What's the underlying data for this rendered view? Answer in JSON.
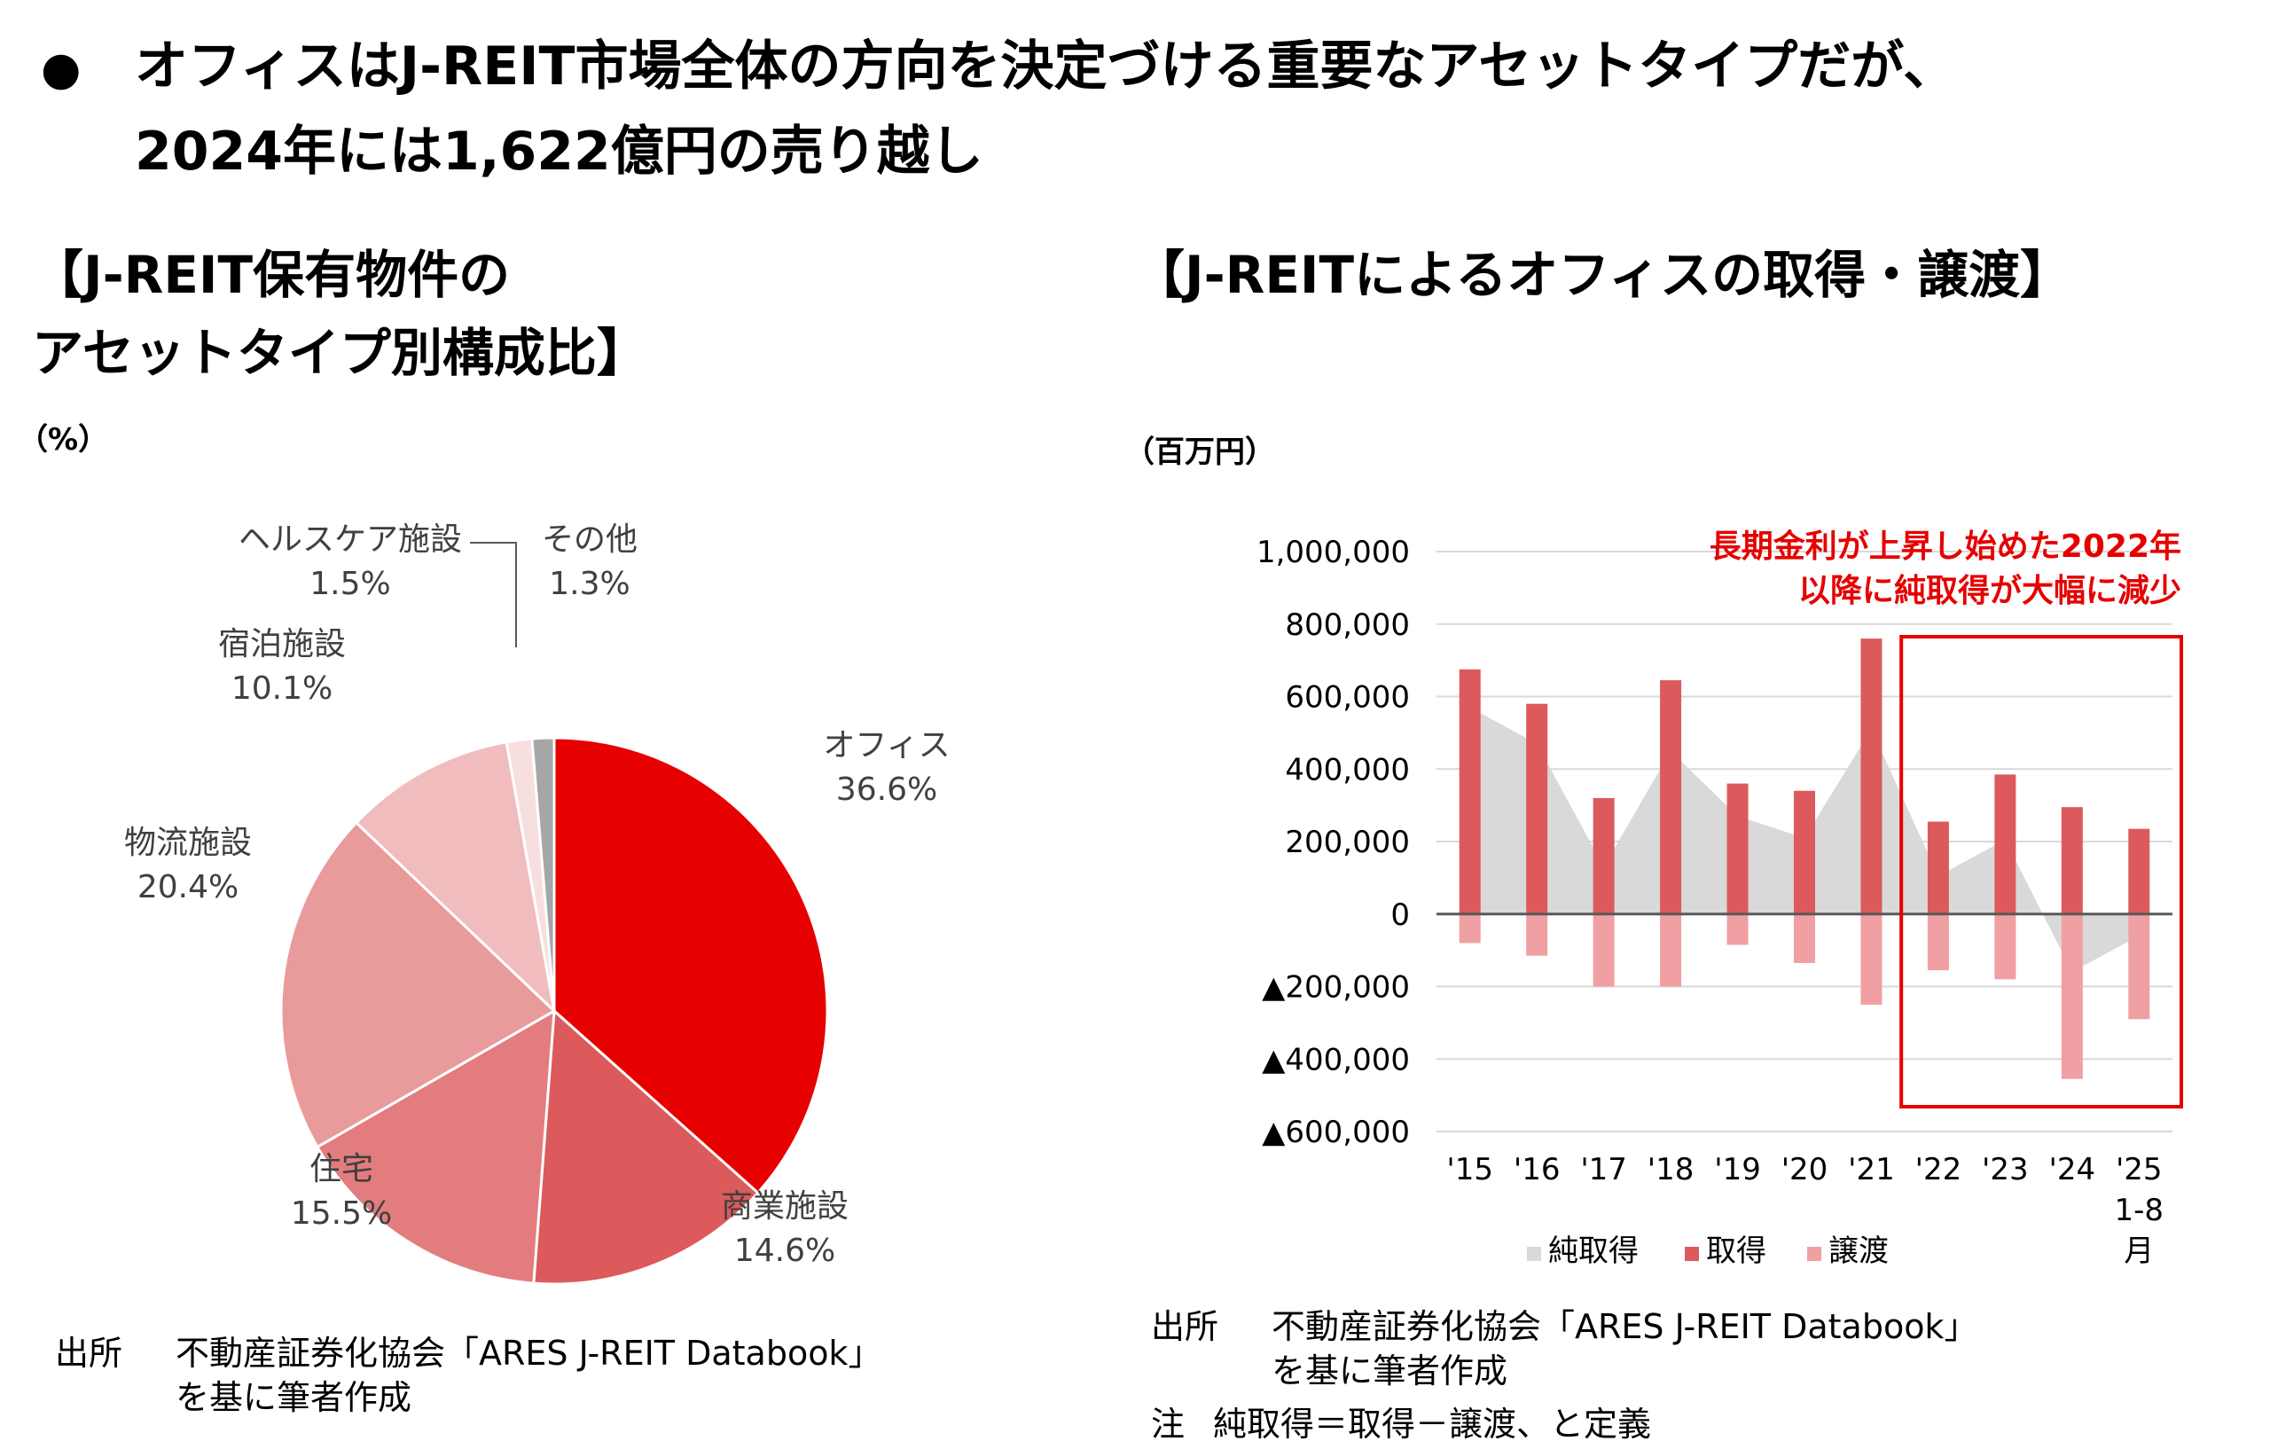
{
  "headline": {
    "bullet": "●",
    "line1": "オフィスはJ-REIT市場全体の方向を決定づける重要なアセットタイプだが、",
    "line2": "2024年には1,622億円の売り越し"
  },
  "left_panel": {
    "title_line1": "【J-REIT保有物件の",
    "title_line2": "アセットタイプ別構成比】",
    "unit": "（%）",
    "source_label": "出所",
    "source_line1": "不動産証券化協会「ARES J-REIT Databook」",
    "source_line2": "を基に筆者作成"
  },
  "right_panel": {
    "title": "【J-REITによるオフィスの取得・譲渡】",
    "unit": "（百万円）",
    "annotation_line1": "長期金利が上昇し始めた2022年",
    "annotation_line2": "以降に純取得が大幅に減少",
    "source_label": "出所",
    "source_line1": "不動産証券化協会「ARES J-REIT Databook」",
    "source_line2": "を基に筆者作成",
    "note_label": "注",
    "note_text": "純取得＝取得－譲渡、と定義"
  },
  "colors": {
    "office": "#e60000",
    "commercial": "#dc5a5c",
    "residential": "#e37c7e",
    "logistics": "#e99a9b",
    "hotel": "#f0bcbd",
    "healthcare": "#f7dfe0",
    "other": "#a6a6a6",
    "net": "#d9d9d9",
    "acquisition": "#dc5a5c",
    "disposal": "#f0a0a2",
    "annotation": "#e60000"
  },
  "chart_data": [
    {
      "type": "pie",
      "unit": "%",
      "slices": [
        {
          "label": "オフィス",
          "value": 36.6,
          "value_label": "36.6%"
        },
        {
          "label": "商業施設",
          "value": 14.6,
          "value_label": "14.6%"
        },
        {
          "label": "住宅",
          "value": 15.5,
          "value_label": "15.5%"
        },
        {
          "label": "物流施設",
          "value": 20.4,
          "value_label": "20.4%"
        },
        {
          "label": "宿泊施設",
          "value": 10.1,
          "value_label": "10.1%"
        },
        {
          "label": "ヘルスケア施設",
          "value": 1.5,
          "value_label": "1.5%"
        },
        {
          "label": "その他",
          "value": 1.3,
          "value_label": "1.3%"
        }
      ]
    },
    {
      "type": "bar",
      "categories": [
        "'15",
        "'16",
        "'17",
        "'18",
        "'19",
        "'20",
        "'21",
        "'22",
        "'23",
        "'24",
        "'25"
      ],
      "category_sublabel": {
        "index": 10,
        "lines": [
          "1-8",
          "月"
        ]
      },
      "ylim": [
        -600000,
        1000000
      ],
      "yticks": [
        {
          "value": 1000000,
          "label": "1,000,000"
        },
        {
          "value": 800000,
          "label": "800,000"
        },
        {
          "value": 600000,
          "label": "600,000"
        },
        {
          "value": 400000,
          "label": "400,000"
        },
        {
          "value": 200000,
          "label": "200,000"
        },
        {
          "value": 0,
          "label": "0"
        },
        {
          "value": -200000,
          "label": "▲200,000"
        },
        {
          "value": -400000,
          "label": "▲400,000"
        },
        {
          "value": -600000,
          "label": "▲600,000"
        }
      ],
      "series": [
        {
          "name": "純取得",
          "type": "area",
          "values": [
            570000,
            470000,
            130000,
            450000,
            270000,
            210000,
            510000,
            105000,
            205000,
            -160000,
            -60000
          ]
        },
        {
          "name": "取得",
          "type": "bar",
          "values": [
            675000,
            580000,
            320000,
            645000,
            360000,
            340000,
            760000,
            255000,
            385000,
            295000,
            235000
          ]
        },
        {
          "name": "譲渡",
          "type": "bar",
          "values": [
            -80000,
            -115000,
            -200000,
            -200000,
            -85000,
            -135000,
            -250000,
            -155000,
            -180000,
            -455000,
            -290000
          ]
        }
      ],
      "highlight_range": [
        "'22",
        "'25"
      ]
    }
  ]
}
